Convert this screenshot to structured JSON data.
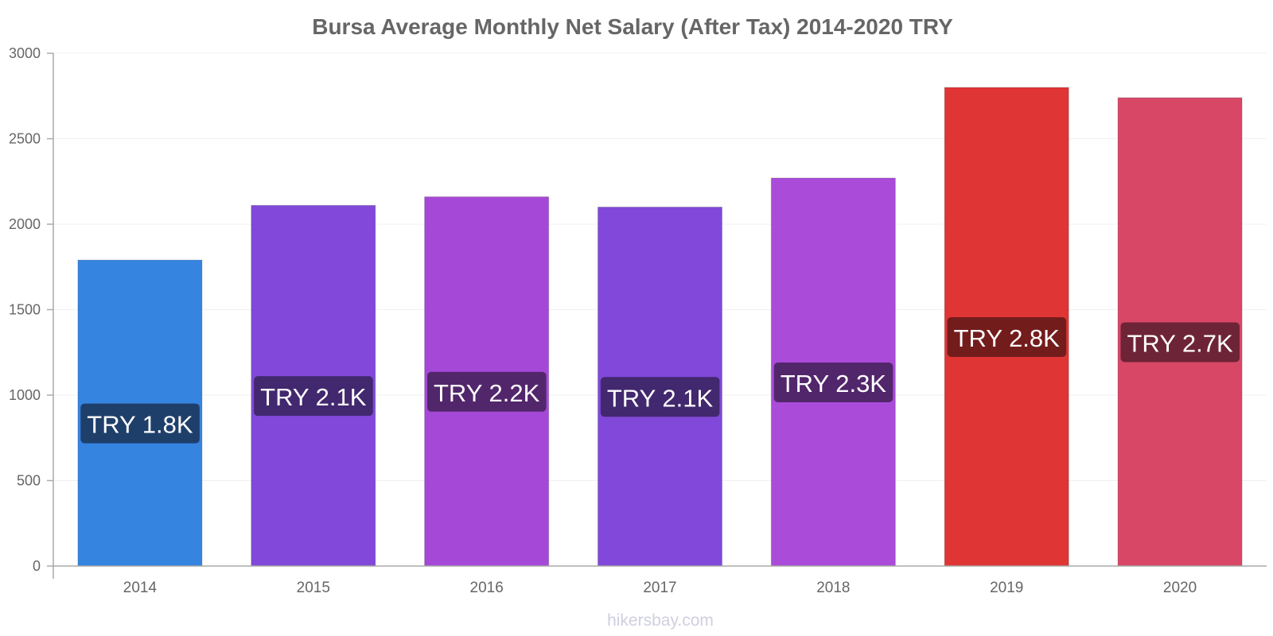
{
  "chart_data": {
    "type": "bar",
    "title": "Bursa Average Monthly Net Salary (After Tax) 2014-2020 TRY",
    "categories": [
      "2014",
      "2015",
      "2016",
      "2017",
      "2018",
      "2019",
      "2020"
    ],
    "values": [
      1790,
      2110,
      2160,
      2100,
      2270,
      2800,
      2740
    ],
    "data_labels": [
      "TRY 1.8K",
      "TRY 2.1K",
      "TRY 2.2K",
      "TRY 2.1K",
      "TRY 2.3K",
      "TRY 2.8K",
      "TRY 2.7K"
    ],
    "bar_colors": [
      "#3584e0",
      "#8148d9",
      "#a548d8",
      "#8148d9",
      "#aa4bd9",
      "#e03535",
      "#d84866"
    ],
    "label_bg_colors": [
      "#1f3f6b",
      "#42286e",
      "#52266b",
      "#42286e",
      "#52266b",
      "#731c1c",
      "#6e2437"
    ],
    "ylim": [
      0,
      3000
    ],
    "yticks": [
      0,
      500,
      1000,
      1500,
      2000,
      2500,
      3000
    ],
    "xlabel": "",
    "ylabel": "",
    "grid": true,
    "legend": "none"
  },
  "footer": "hikersbay.com"
}
